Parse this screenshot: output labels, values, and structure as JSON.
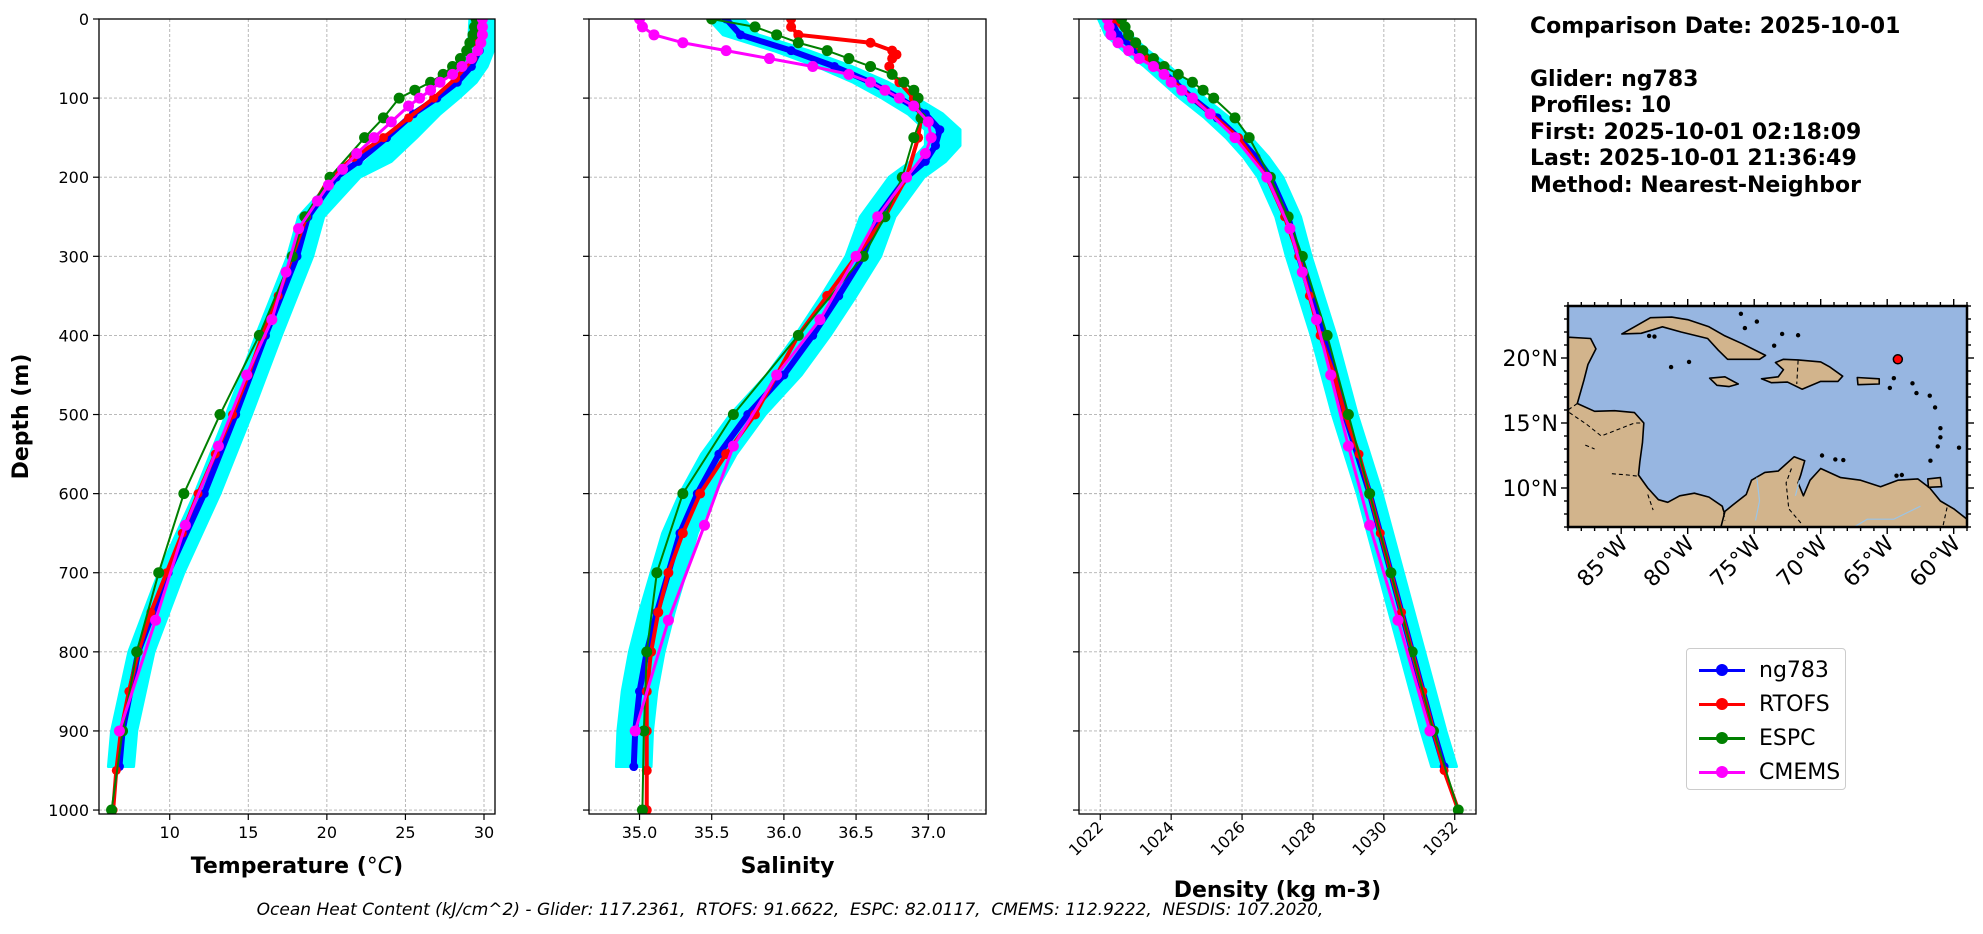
{
  "info": {
    "comparison_date": "Comparison Date: 2025-10-01",
    "glider": "Glider: ng783",
    "profiles": "Profiles: 10",
    "first": "First: 2025-10-01 02:18:09",
    "last": "Last: 2025-10-01 21:36:49",
    "method": "Method: Nearest-Neighbor"
  },
  "footer": "Ocean Heat Content (kJ/cm^2) - Glider: 117.2361,  RTOFS: 91.6622,  ESPC: 82.0117,  CMEMS: 112.9222,  NESDIS: 107.2020,",
  "colors": {
    "ng783": "#0000ff",
    "ng783_envelope": "#00ffff",
    "rtofs": "#ff0000",
    "espc": "#008000",
    "cmems": "#ff00ff",
    "grid": "#b0b0b0",
    "ocean": "#97b6e1",
    "land": "#d2b48c"
  },
  "legend": [
    {
      "name": "ng783",
      "color": "#0000ff"
    },
    {
      "name": "RTOFS",
      "color": "#ff0000"
    },
    {
      "name": "ESPC",
      "color": "#008000"
    },
    {
      "name": "CMEMS",
      "color": "#ff00ff"
    }
  ],
  "chart_data": [
    {
      "type": "line",
      "xlabel": "Temperature (°C)",
      "ylabel": "Depth (m)",
      "xlim": [
        5.5,
        30.7
      ],
      "ylim": [
        1005,
        0
      ],
      "xticks": [
        10,
        15,
        20,
        25,
        30
      ],
      "yticks": [
        0,
        100,
        200,
        300,
        400,
        500,
        600,
        700,
        800,
        900,
        1000
      ],
      "grid": true,
      "envelope": {
        "name": "ng783",
        "color": "#00ffff",
        "width": 0.8,
        "depth": [
          0,
          40,
          60,
          80,
          100,
          120,
          150,
          180,
          200,
          250,
          300,
          400,
          500,
          600,
          700,
          800,
          900,
          945
        ],
        "values": [
          29.9,
          29.8,
          29.4,
          28.7,
          27.6,
          26.4,
          24.9,
          23.3,
          21.3,
          19.0,
          18.3,
          16.3,
          14.4,
          12.4,
          10.1,
          8.2,
          7.1,
          6.9
        ]
      },
      "series": [
        {
          "name": "ng783",
          "color": "#0000ff",
          "width": 6,
          "marker": 7,
          "depth": [
            0,
            40,
            60,
            80,
            100,
            120,
            150,
            180,
            200,
            250,
            300,
            400,
            500,
            600,
            700,
            800,
            900,
            945
          ],
          "values": [
            29.8,
            29.7,
            29.2,
            28.3,
            27.0,
            25.5,
            23.8,
            22.0,
            20.6,
            18.8,
            18.1,
            16.1,
            14.2,
            12.2,
            9.9,
            8.0,
            7.0,
            6.8
          ]
        },
        {
          "name": "RTOFS",
          "color": "#ff0000",
          "width": 4,
          "marker": 7,
          "depth": [
            0,
            25,
            50,
            75,
            100,
            125,
            150,
            175,
            200,
            250,
            300,
            350,
            400,
            450,
            500,
            550,
            600,
            650,
            700,
            750,
            800,
            850,
            900,
            950,
            1000
          ],
          "values": [
            29.7,
            29.6,
            29.3,
            28.2,
            26.8,
            25.2,
            23.6,
            21.7,
            20.2,
            18.7,
            17.8,
            16.9,
            15.9,
            15.0,
            14.0,
            12.9,
            11.8,
            10.8,
            9.8,
            8.8,
            8.0,
            7.4,
            6.9,
            6.6,
            6.4
          ]
        },
        {
          "name": "ESPC",
          "color": "#008000",
          "width": 2,
          "marker": 9,
          "depth": [
            0,
            10,
            20,
            30,
            40,
            50,
            60,
            70,
            80,
            90,
            100,
            125,
            150,
            200,
            250,
            300,
            400,
            500,
            600,
            700,
            800,
            900,
            1000
          ],
          "values": [
            29.5,
            29.4,
            29.3,
            29.1,
            28.9,
            28.5,
            28.0,
            27.4,
            26.6,
            25.6,
            24.6,
            23.6,
            22.4,
            20.2,
            18.6,
            17.8,
            15.7,
            13.2,
            10.9,
            9.3,
            7.9,
            7.0,
            6.3
          ]
        },
        {
          "name": "CMEMS",
          "color": "#ff00ff",
          "width": 3,
          "marker": 9,
          "depth": [
            0,
            10,
            20,
            30,
            40,
            50,
            60,
            70,
            80,
            90,
            100,
            110,
            130,
            150,
            170,
            190,
            210,
            230,
            265,
            320,
            380,
            450,
            540,
            640,
            760,
            900
          ],
          "values": [
            29.9,
            29.9,
            29.9,
            29.8,
            29.6,
            29.2,
            28.6,
            28.0,
            27.2,
            26.6,
            25.9,
            25.2,
            24.1,
            23.0,
            21.9,
            21.0,
            20.1,
            19.4,
            18.2,
            17.4,
            16.5,
            14.9,
            13.1,
            11.0,
            9.1,
            6.8
          ]
        }
      ]
    },
    {
      "type": "line",
      "xlabel": "Salinity",
      "xlim": [
        34.65,
        37.4
      ],
      "ylim": [
        1005,
        0
      ],
      "xticks": [
        35.0,
        35.5,
        36.0,
        36.5,
        37.0
      ],
      "yticks": [
        0,
        100,
        200,
        300,
        400,
        500,
        600,
        700,
        800,
        900,
        1000
      ],
      "grid": true,
      "envelope": {
        "name": "ng783",
        "color": "#00ffff",
        "width": 0.12,
        "depth": [
          0,
          20,
          40,
          60,
          80,
          100,
          120,
          140,
          160,
          180,
          200,
          250,
          300,
          350,
          400,
          450,
          500,
          550,
          600,
          650,
          700,
          750,
          800,
          850,
          900,
          945
        ],
        "values": [
          35.6,
          35.7,
          36.05,
          36.35,
          36.6,
          36.8,
          36.98,
          37.1,
          37.1,
          37.0,
          36.85,
          36.65,
          36.55,
          36.38,
          36.2,
          36.0,
          35.75,
          35.55,
          35.4,
          35.28,
          35.2,
          35.12,
          35.05,
          35.0,
          34.97,
          34.96
        ]
      },
      "series": [
        {
          "name": "ng783",
          "color": "#0000ff",
          "width": 6,
          "marker": 7,
          "depth": [
            0,
            20,
            40,
            60,
            80,
            100,
            120,
            140,
            160,
            180,
            200,
            250,
            300,
            350,
            400,
            450,
            500,
            550,
            600,
            650,
            700,
            750,
            800,
            850,
            900,
            945
          ],
          "values": [
            35.6,
            35.7,
            36.05,
            36.35,
            36.6,
            36.8,
            36.98,
            37.08,
            37.05,
            36.98,
            36.85,
            36.65,
            36.55,
            36.38,
            36.2,
            36.0,
            35.75,
            35.55,
            35.4,
            35.28,
            35.2,
            35.12,
            35.05,
            35.0,
            34.97,
            34.96
          ]
        },
        {
          "name": "RTOFS",
          "color": "#ff0000",
          "width": 4,
          "marker": 8,
          "depth": [
            0,
            10,
            20,
            30,
            40,
            45,
            50,
            60,
            70,
            80,
            100,
            125,
            150,
            200,
            250,
            300,
            350,
            400,
            450,
            500,
            550,
            600,
            650,
            700,
            750,
            800,
            850,
            900,
            950,
            1000
          ],
          "values": [
            36.05,
            36.05,
            36.1,
            36.6,
            36.75,
            36.78,
            36.75,
            36.73,
            36.75,
            36.8,
            36.9,
            36.95,
            36.93,
            36.85,
            36.7,
            36.5,
            36.3,
            36.1,
            35.95,
            35.8,
            35.6,
            35.42,
            35.3,
            35.2,
            35.13,
            35.08,
            35.05,
            35.05,
            35.05,
            35.05
          ]
        },
        {
          "name": "ESPC",
          "color": "#008000",
          "width": 2,
          "marker": 9,
          "depth": [
            0,
            10,
            20,
            30,
            40,
            50,
            60,
            70,
            80,
            90,
            100,
            125,
            150,
            200,
            250,
            300,
            400,
            500,
            600,
            700,
            800,
            900,
            1000
          ],
          "values": [
            35.5,
            35.8,
            35.95,
            36.1,
            36.3,
            36.45,
            36.6,
            36.75,
            36.83,
            36.9,
            36.93,
            36.95,
            36.9,
            36.82,
            36.7,
            36.55,
            36.1,
            35.65,
            35.3,
            35.12,
            35.05,
            35.03,
            35.02
          ]
        },
        {
          "name": "CMEMS",
          "color": "#ff00ff",
          "width": 3,
          "marker": 9,
          "depth": [
            0,
            10,
            20,
            30,
            40,
            50,
            60,
            70,
            80,
            90,
            100,
            110,
            130,
            150,
            170,
            200,
            250,
            300,
            380,
            450,
            540,
            640,
            760,
            900
          ],
          "values": [
            35.0,
            35.02,
            35.1,
            35.3,
            35.6,
            35.9,
            36.2,
            36.45,
            36.6,
            36.7,
            36.8,
            36.9,
            37.0,
            37.02,
            36.98,
            36.85,
            36.65,
            36.5,
            36.25,
            35.95,
            35.65,
            35.45,
            35.2,
            34.97
          ]
        }
      ]
    },
    {
      "type": "line",
      "xlabel": "Density (kg m-3)",
      "xlim": [
        1021.4,
        1032.6
      ],
      "ylim": [
        1005,
        0
      ],
      "xticks": [
        1022,
        1024,
        1026,
        1028,
        1030,
        1032
      ],
      "yticks": [
        0,
        100,
        200,
        300,
        400,
        500,
        600,
        700,
        800,
        900,
        1000
      ],
      "grid": true,
      "envelope": {
        "name": "ng783",
        "color": "#00ffff",
        "width": 0.35,
        "depth": [
          0,
          20,
          40,
          60,
          80,
          100,
          125,
          150,
          175,
          200,
          250,
          300,
          400,
          500,
          600,
          700,
          800,
          900,
          945
        ],
        "values": [
          1022.3,
          1022.5,
          1023.0,
          1023.6,
          1024.1,
          1024.6,
          1025.3,
          1025.9,
          1026.4,
          1026.8,
          1027.3,
          1027.6,
          1028.3,
          1028.9,
          1029.6,
          1030.2,
          1030.8,
          1031.4,
          1031.7
        ]
      },
      "series": [
        {
          "name": "ng783",
          "color": "#0000ff",
          "width": 6,
          "marker": 7,
          "depth": [
            0,
            20,
            40,
            60,
            80,
            100,
            125,
            150,
            175,
            200,
            250,
            300,
            400,
            500,
            600,
            700,
            800,
            900,
            945
          ],
          "values": [
            1022.3,
            1022.5,
            1023.0,
            1023.6,
            1024.1,
            1024.6,
            1025.3,
            1025.9,
            1026.4,
            1026.8,
            1027.3,
            1027.6,
            1028.3,
            1028.9,
            1029.6,
            1030.2,
            1030.8,
            1031.4,
            1031.7
          ]
        },
        {
          "name": "RTOFS",
          "color": "#ff0000",
          "width": 4,
          "marker": 7,
          "depth": [
            0,
            50,
            100,
            150,
            200,
            250,
            300,
            350,
            400,
            450,
            500,
            550,
            600,
            650,
            700,
            750,
            800,
            850,
            900,
            950,
            1000
          ],
          "values": [
            1022.4,
            1023.3,
            1024.6,
            1025.9,
            1026.7,
            1027.2,
            1027.6,
            1027.9,
            1028.2,
            1028.6,
            1028.9,
            1029.3,
            1029.6,
            1029.9,
            1030.2,
            1030.5,
            1030.8,
            1031.1,
            1031.4,
            1031.7,
            1032.1
          ]
        },
        {
          "name": "ESPC",
          "color": "#008000",
          "width": 2,
          "marker": 9,
          "depth": [
            0,
            10,
            20,
            30,
            40,
            50,
            60,
            70,
            80,
            90,
            100,
            125,
            150,
            200,
            250,
            300,
            400,
            500,
            600,
            700,
            800,
            900,
            1000
          ],
          "values": [
            1022.6,
            1022.7,
            1022.8,
            1023.0,
            1023.2,
            1023.5,
            1023.8,
            1024.2,
            1024.6,
            1024.9,
            1025.2,
            1025.8,
            1026.2,
            1026.8,
            1027.3,
            1027.7,
            1028.4,
            1029.0,
            1029.6,
            1030.2,
            1030.8,
            1031.4,
            1032.1
          ]
        },
        {
          "name": "CMEMS",
          "color": "#ff00ff",
          "width": 3,
          "marker": 9,
          "depth": [
            0,
            10,
            20,
            30,
            40,
            50,
            60,
            70,
            80,
            90,
            100,
            120,
            150,
            200,
            265,
            320,
            380,
            450,
            540,
            640,
            760,
            900
          ],
          "values": [
            1022.2,
            1022.25,
            1022.3,
            1022.5,
            1022.8,
            1023.1,
            1023.5,
            1023.8,
            1024.0,
            1024.3,
            1024.6,
            1025.1,
            1025.8,
            1026.7,
            1027.35,
            1027.7,
            1028.1,
            1028.5,
            1029.0,
            1029.6,
            1030.4,
            1031.3
          ]
        }
      ]
    },
    {
      "type": "map",
      "lon_range": [
        -89,
        -59
      ],
      "lat_range": [
        7,
        24
      ],
      "xticks": [
        "85°W",
        "80°W",
        "75°W",
        "70°W",
        "65°W",
        "60°W"
      ],
      "xtick_values": [
        -85,
        -80,
        -75,
        -70,
        -65,
        -60
      ],
      "yticks": [
        "20°N",
        "15°N",
        "10°N"
      ],
      "ytick_values": [
        20,
        15,
        10
      ],
      "glider_position": {
        "lon": -64.2,
        "lat": 19.9
      }
    }
  ]
}
